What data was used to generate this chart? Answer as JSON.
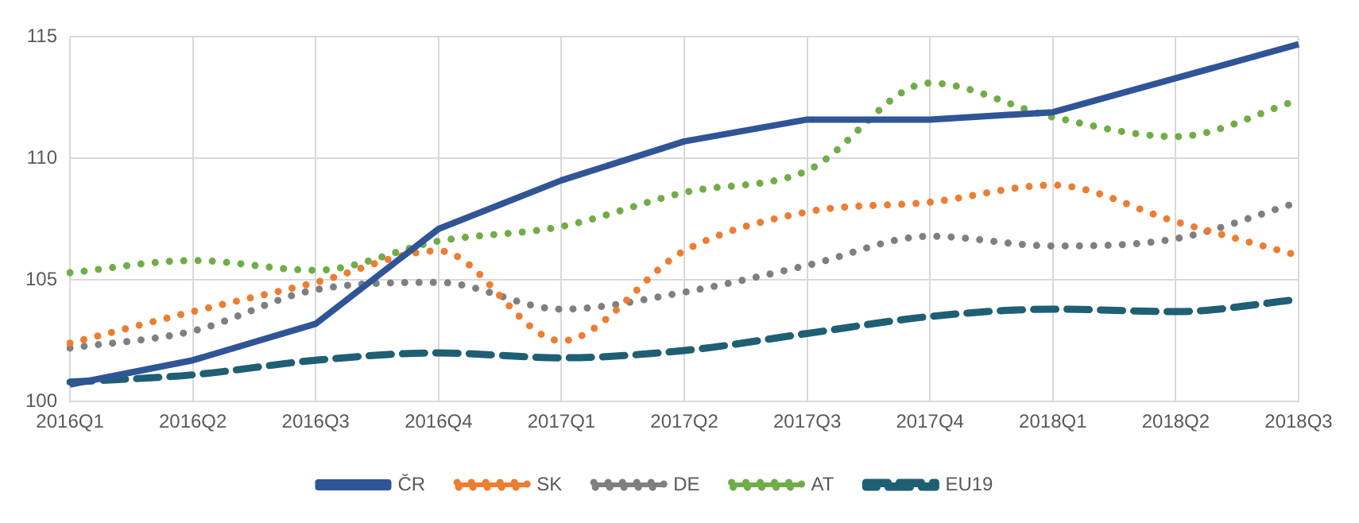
{
  "chart_data": {
    "type": "line",
    "categories": [
      "2016Q1",
      "2016Q2",
      "2016Q3",
      "2016Q4",
      "2017Q1",
      "2017Q2",
      "2017Q3",
      "2017Q4",
      "2018Q1",
      "2018Q2",
      "2018Q3"
    ],
    "ylim": [
      100,
      115
    ],
    "yticks": [
      100,
      105,
      110,
      115
    ],
    "grid": true,
    "legend": "bottom",
    "marker": "none",
    "series": [
      {
        "name": "ČR",
        "color": "#2f5597",
        "line_style": "solid",
        "values": [
          100.7,
          101.7,
          103.2,
          107.1,
          109.1,
          110.7,
          111.6,
          111.6,
          111.9,
          113.3,
          114.7
        ]
      },
      {
        "name": "SK",
        "color": "#ed7d31",
        "line_style": "dotted",
        "values": [
          102.4,
          103.7,
          104.9,
          106.2,
          102.5,
          106.2,
          107.8,
          108.2,
          108.9,
          107.4,
          106.0
        ]
      },
      {
        "name": "DE",
        "color": "#7f7f7f",
        "line_style": "dotted",
        "values": [
          102.2,
          102.9,
          104.6,
          104.9,
          103.8,
          104.5,
          105.6,
          106.8,
          106.4,
          106.7,
          108.2
        ]
      },
      {
        "name": "AT",
        "color": "#70ad47",
        "line_style": "dotted",
        "values": [
          105.3,
          105.8,
          105.4,
          106.6,
          107.2,
          108.6,
          109.5,
          113.1,
          111.7,
          110.9,
          112.4
        ]
      },
      {
        "name": "EU19",
        "color": "#1f5f74",
        "line_style": "dashed",
        "values": [
          100.8,
          101.1,
          101.7,
          102.0,
          101.8,
          102.1,
          102.8,
          103.5,
          103.8,
          103.7,
          104.2
        ]
      }
    ]
  }
}
